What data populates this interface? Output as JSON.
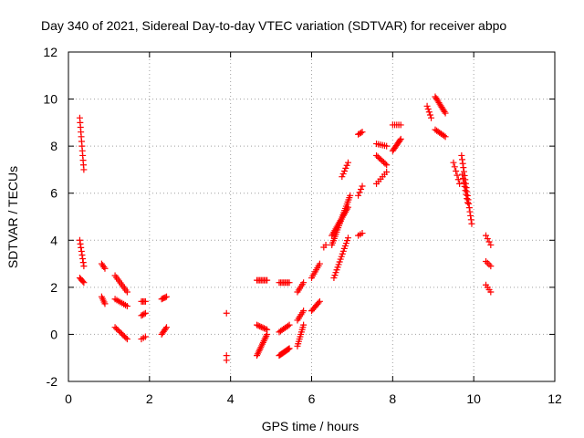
{
  "chart_data": {
    "type": "scatter",
    "title": "Day 340 of 2021, Sidereal Day-to-day VTEC variation (SDTVAR) for receiver abpo",
    "xlabel": "GPS time / hours",
    "ylabel": "SDTVAR / TECUs",
    "xlim": [
      0,
      12
    ],
    "ylim": [
      -2,
      12
    ],
    "xticks": [
      0,
      2,
      4,
      6,
      8,
      10,
      12
    ],
    "yticks": [
      -2,
      0,
      2,
      4,
      6,
      8,
      10,
      12
    ],
    "grid": true,
    "marker": "+",
    "color": "#ff0000",
    "segments": [
      {
        "x0": 0.28,
        "x1": 0.38,
        "y0": 9.2,
        "y1": 7.0,
        "n": 12
      },
      {
        "x0": 0.28,
        "x1": 0.38,
        "y0": 4.0,
        "y1": 2.9,
        "n": 8
      },
      {
        "x0": 0.28,
        "x1": 0.38,
        "y0": 2.4,
        "y1": 2.2,
        "n": 5
      },
      {
        "x0": 0.82,
        "x1": 0.9,
        "y0": 3.0,
        "y1": 2.8,
        "n": 4
      },
      {
        "x0": 0.82,
        "x1": 0.9,
        "y0": 1.6,
        "y1": 1.3,
        "n": 5
      },
      {
        "x0": 1.15,
        "x1": 1.45,
        "y0": 2.5,
        "y1": 1.8,
        "n": 10
      },
      {
        "x0": 1.15,
        "x1": 1.45,
        "y0": 1.5,
        "y1": 1.2,
        "n": 8
      },
      {
        "x0": 1.15,
        "x1": 1.45,
        "y0": 0.3,
        "y1": -0.2,
        "n": 10
      },
      {
        "x0": 1.8,
        "x1": 1.9,
        "y0": 1.4,
        "y1": 1.4,
        "n": 4
      },
      {
        "x0": 1.8,
        "x1": 1.9,
        "y0": 0.8,
        "y1": 0.9,
        "n": 4
      },
      {
        "x0": 1.8,
        "x1": 1.9,
        "y0": -0.2,
        "y1": -0.1,
        "n": 3
      },
      {
        "x0": 2.3,
        "x1": 2.42,
        "y0": 1.5,
        "y1": 1.6,
        "n": 5
      },
      {
        "x0": 2.3,
        "x1": 2.42,
        "y0": 0.0,
        "y1": 0.3,
        "n": 6
      },
      {
        "x0": 3.9,
        "x1": 3.9,
        "y0": 0.9,
        "y1": 0.9,
        "n": 1
      },
      {
        "x0": 3.9,
        "x1": 3.9,
        "y0": -0.9,
        "y1": -1.1,
        "n": 2
      },
      {
        "x0": 4.65,
        "x1": 4.9,
        "y0": 2.3,
        "y1": 2.3,
        "n": 8
      },
      {
        "x0": 4.65,
        "x1": 4.9,
        "y0": 0.4,
        "y1": 0.2,
        "n": 8
      },
      {
        "x0": 4.65,
        "x1": 4.9,
        "y0": -0.9,
        "y1": 0.0,
        "n": 14
      },
      {
        "x0": 5.2,
        "x1": 5.45,
        "y0": 2.2,
        "y1": 2.2,
        "n": 8
      },
      {
        "x0": 5.2,
        "x1": 5.45,
        "y0": 0.1,
        "y1": 0.4,
        "n": 8
      },
      {
        "x0": 5.2,
        "x1": 5.45,
        "y0": -0.9,
        "y1": -0.6,
        "n": 12
      },
      {
        "x0": 5.65,
        "x1": 5.8,
        "y0": 1.8,
        "y1": 2.2,
        "n": 6
      },
      {
        "x0": 5.65,
        "x1": 5.8,
        "y0": 0.6,
        "y1": 1.0,
        "n": 6
      },
      {
        "x0": 5.65,
        "x1": 5.8,
        "y0": -0.5,
        "y1": 0.4,
        "n": 10
      },
      {
        "x0": 6.0,
        "x1": 6.2,
        "y0": 2.4,
        "y1": 3.0,
        "n": 8
      },
      {
        "x0": 6.0,
        "x1": 6.2,
        "y0": 1.0,
        "y1": 1.4,
        "n": 8
      },
      {
        "x0": 6.3,
        "x1": 6.35,
        "y0": 3.7,
        "y1": 3.8,
        "n": 2
      },
      {
        "x0": 6.5,
        "x1": 6.95,
        "y0": 3.8,
        "y1": 5.9,
        "n": 24
      },
      {
        "x0": 6.5,
        "x1": 6.9,
        "y0": 4.2,
        "y1": 5.4,
        "n": 18
      },
      {
        "x0": 6.55,
        "x1": 6.9,
        "y0": 2.4,
        "y1": 4.1,
        "n": 16
      },
      {
        "x0": 6.75,
        "x1": 6.9,
        "y0": 6.7,
        "y1": 7.3,
        "n": 6
      },
      {
        "x0": 7.15,
        "x1": 7.25,
        "y0": 5.9,
        "y1": 6.3,
        "n": 4
      },
      {
        "x0": 7.15,
        "x1": 7.25,
        "y0": 8.5,
        "y1": 8.6,
        "n": 4
      },
      {
        "x0": 7.15,
        "x1": 7.25,
        "y0": 4.2,
        "y1": 4.3,
        "n": 3
      },
      {
        "x0": 7.6,
        "x1": 7.85,
        "y0": 8.1,
        "y1": 8.0,
        "n": 6
      },
      {
        "x0": 7.6,
        "x1": 7.85,
        "y0": 7.6,
        "y1": 7.2,
        "n": 8
      },
      {
        "x0": 7.6,
        "x1": 7.85,
        "y0": 6.4,
        "y1": 6.9,
        "n": 6
      },
      {
        "x0": 8.0,
        "x1": 8.2,
        "y0": 8.9,
        "y1": 8.9,
        "n": 5
      },
      {
        "x0": 8.0,
        "x1": 8.2,
        "y0": 7.8,
        "y1": 8.3,
        "n": 10
      },
      {
        "x0": 8.85,
        "x1": 8.95,
        "y0": 9.7,
        "y1": 9.2,
        "n": 5
      },
      {
        "x0": 9.05,
        "x1": 9.3,
        "y0": 10.1,
        "y1": 9.4,
        "n": 12
      },
      {
        "x0": 9.05,
        "x1": 9.3,
        "y0": 8.7,
        "y1": 8.4,
        "n": 8
      },
      {
        "x0": 9.5,
        "x1": 9.65,
        "y0": 7.3,
        "y1": 6.4,
        "n": 6
      },
      {
        "x0": 9.7,
        "x1": 9.95,
        "y0": 7.6,
        "y1": 4.7,
        "n": 18
      },
      {
        "x0": 9.72,
        "x1": 9.85,
        "y0": 6.8,
        "y1": 5.6,
        "n": 8
      },
      {
        "x0": 10.3,
        "x1": 10.42,
        "y0": 4.2,
        "y1": 3.8,
        "n": 4
      },
      {
        "x0": 10.3,
        "x1": 10.42,
        "y0": 3.1,
        "y1": 2.9,
        "n": 4
      },
      {
        "x0": 10.3,
        "x1": 10.42,
        "y0": 2.1,
        "y1": 1.8,
        "n": 4
      }
    ]
  }
}
